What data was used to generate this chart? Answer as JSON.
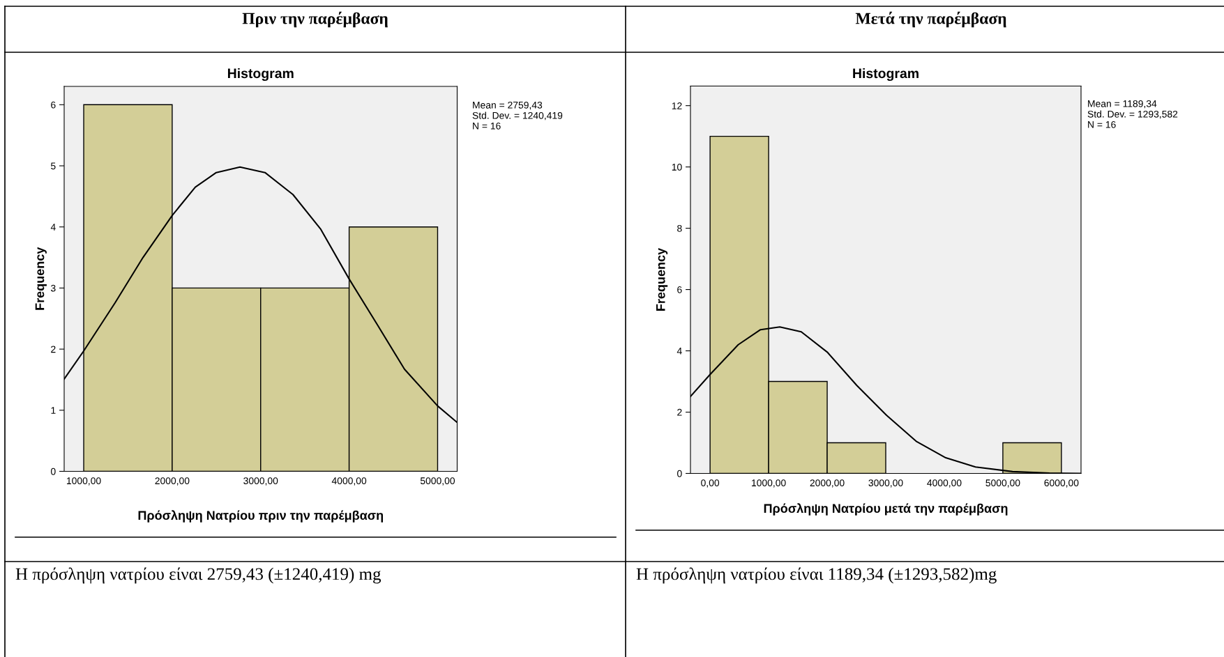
{
  "chart_data": [
    {
      "type": "histogram",
      "title": "Πριν την παρέμβαση",
      "subtitle": "Histogram",
      "xlabel": "Πρόσληψη Νατρίου πριν την παρέμβαση",
      "ylabel": "Frequency",
      "bins": [
        1000,
        2000,
        3000,
        4000,
        5000
      ],
      "values": [
        6,
        3,
        3,
        4
      ],
      "color": "#d3ce97",
      "series": [
        {
          "type": "line",
          "color": "#000000",
          "x": [
            779,
            1000,
            1355,
            1670,
            2001,
            2261,
            2498,
            2766,
            3049,
            3365,
            3680,
            3995,
            4310,
            4626,
            5000,
            5221
          ],
          "values": [
            1.51,
            1.97,
            2.76,
            3.5,
            4.19,
            4.65,
            4.89,
            4.98,
            4.89,
            4.53,
            3.96,
            3.16,
            2.42,
            1.67,
            1.07,
            0.8
          ]
        }
      ],
      "xlim": [
        779,
        5221
      ],
      "xticks": [
        {
          "value": 1000,
          "label": "1000,00"
        },
        {
          "value": 2000,
          "label": "2000,00"
        },
        {
          "value": 3000,
          "label": "3000,00"
        },
        {
          "value": 4000,
          "label": "4000,00"
        },
        {
          "value": 5000,
          "label": "5000,00"
        }
      ],
      "ylim": [
        0,
        6.3
      ],
      "yticks": [
        0,
        1,
        2,
        3,
        4,
        5,
        6
      ],
      "grid": false,
      "legend": false,
      "annotations": [
        "Mean = 2759,43",
        "Std. Dev. = 1240,419",
        "N = 16",
        "Η πρόσληψη νατρίου είναι 2759,43 (±1240,419) mg"
      ]
    },
    {
      "type": "histogram",
      "title": "Μετά την παρέμβαση",
      "subtitle": "Histogram",
      "xlabel": "Πρόσληψη Νατρίου μετά την παρέμβαση",
      "ylabel": "Frequency",
      "bins": [
        0,
        1000,
        2000,
        3000,
        4000,
        5000,
        6000
      ],
      "values": [
        11,
        3,
        1,
        0,
        0,
        1
      ],
      "color": "#d3ce97",
      "series": [
        {
          "type": "line",
          "color": "#000000",
          "x": [
            -335,
            0,
            481,
            861,
            1190,
            1557,
            2000,
            2506,
            3013,
            3519,
            4025,
            4532,
            5165,
            5797,
            6323
          ],
          "values": [
            2.51,
            3.23,
            4.2,
            4.69,
            4.78,
            4.62,
            3.96,
            2.87,
            1.9,
            1.05,
            0.51,
            0.21,
            0.06,
            0.01,
            0
          ]
        }
      ],
      "xlim": [
        -335,
        6335
      ],
      "xticks": [
        {
          "value": 0,
          "label": "0,00"
        },
        {
          "value": 1000,
          "label": "1000,00"
        },
        {
          "value": 2000,
          "label": "2000,00"
        },
        {
          "value": 3000,
          "label": "3000,00"
        },
        {
          "value": 4000,
          "label": "4000,00"
        },
        {
          "value": 5000,
          "label": "5000,00"
        },
        {
          "value": 6000,
          "label": "6000,00"
        }
      ],
      "ylim": [
        0,
        12.64
      ],
      "yticks": [
        0,
        2,
        4,
        6,
        8,
        10,
        12
      ],
      "grid": false,
      "legend": false,
      "annotations": [
        "Mean = 1189,34",
        "Std. Dev. = 1293,582",
        "N = 16",
        "Η πρόσληψη νατρίου είναι 1189,34 (±1293,582)mg"
      ]
    }
  ]
}
